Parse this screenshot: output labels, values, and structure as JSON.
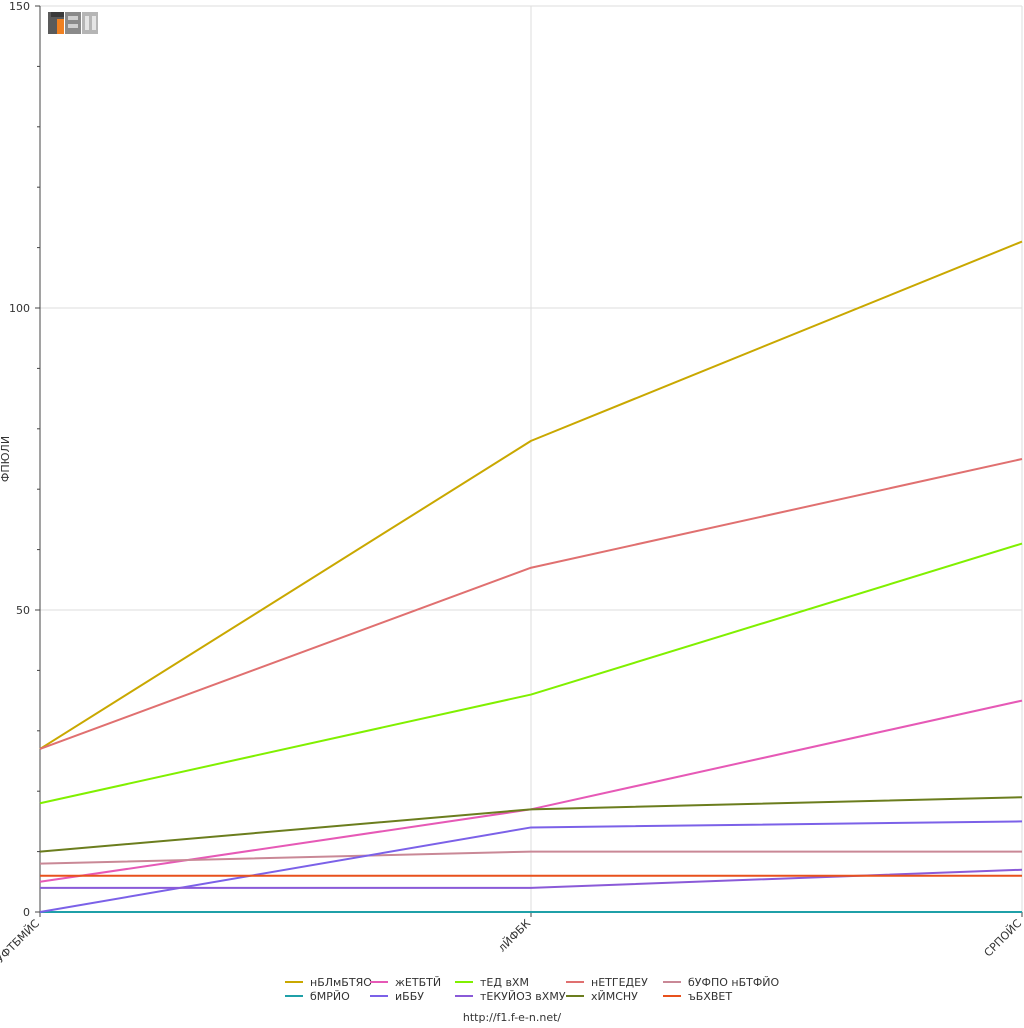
{
  "chart_data": {
    "type": "line",
    "title": "",
    "ylabel": "ФПЮЛИ",
    "xlabel": "",
    "categories": [
      "бЧУФТБМЙС",
      "лЙФБК",
      "СРПОЙС"
    ],
    "ylim": [
      0,
      150
    ],
    "yticks": [
      0,
      50,
      100,
      150
    ],
    "grid": true,
    "legend_position": "bottom",
    "series": [
      {
        "name": "нБЛмБТЯО",
        "color": "#c9a800",
        "values": [
          27,
          78,
          111
        ]
      },
      {
        "name": "жЕТБТЙ",
        "color": "#e659b6",
        "values": [
          5,
          17,
          35
        ]
      },
      {
        "name": "тЕД вХМ",
        "color": "#80f000",
        "values": [
          18,
          36,
          61
        ]
      },
      {
        "name": "нЕТГЕДЕУ",
        "color": "#e07070",
        "values": [
          27,
          57,
          75
        ]
      },
      {
        "name": "бУФПО нБТФЙО",
        "color": "#c98896",
        "values": [
          8,
          10,
          10
        ]
      },
      {
        "name": "бМРЙО",
        "color": "#1fa0a8",
        "values": [
          0,
          0,
          0
        ]
      },
      {
        "name": "иББУ",
        "color": "#7b61e8",
        "values": [
          0,
          14,
          15
        ]
      },
      {
        "name": "тЕКУЙОЗ вХМУ",
        "color": "#8a5ad8",
        "values": [
          4,
          4,
          7
        ]
      },
      {
        "name": "хЙМСНУ",
        "color": "#6b7d1e",
        "values": [
          10,
          17,
          19
        ]
      },
      {
        "name": "ъБХВЕТ",
        "color": "#e8511c",
        "values": [
          6,
          6,
          6
        ]
      }
    ]
  },
  "logo": {
    "text": "F1EN"
  },
  "footer": {
    "url": "http://f1.f-e-n.net/"
  }
}
